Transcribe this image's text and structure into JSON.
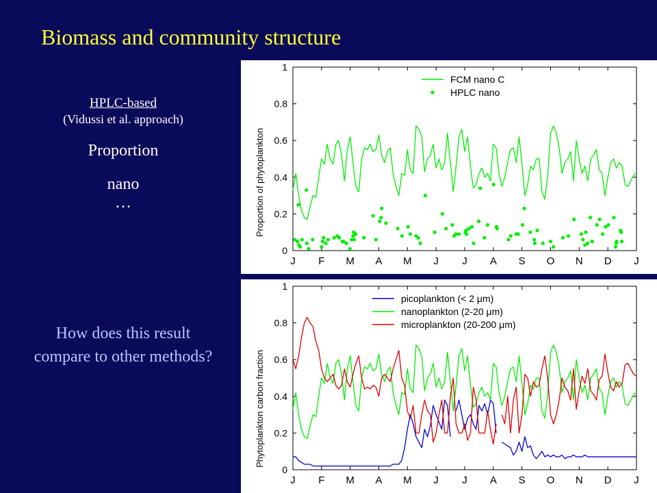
{
  "slide": {
    "title": "Biomass and community structure"
  },
  "left_panel": {
    "method_label": "HPLC-based",
    "reference": "(Vidussi et al. approach)",
    "line1": "Proportion",
    "line2": "nano",
    "ellipsis": "…",
    "question": "How does this result compare to other methods?"
  },
  "colors": {
    "background": "#0a0a5a",
    "title": "#ffff33",
    "question": "#b8c4ff",
    "green": "#00ee00",
    "blue": "#0000cc",
    "red": "#dd0000"
  },
  "chart_data": [
    {
      "type": "line",
      "ylabel": "Proportion of phytoplankton",
      "xlabel": "",
      "ylim": [
        0,
        1
      ],
      "yticks": [
        0,
        0.2,
        0.4,
        0.6,
        0.8,
        1
      ],
      "ytick_labels": [
        "0",
        "0.2",
        "0.4",
        "0.6",
        "0.8",
        "1"
      ],
      "xtick_labels": [
        "J",
        "F",
        "M",
        "A",
        "M",
        "J",
        "J",
        "A",
        "S",
        "O",
        "N",
        "D",
        "J"
      ],
      "legend": "top-center",
      "series": [
        {
          "name": "FCM nano C",
          "style": "line",
          "color": "#00ee00",
          "y": [
            0.33,
            0.42,
            0.3,
            0.22,
            0.18,
            0.17,
            0.24,
            0.3,
            0.29,
            0.4,
            0.5,
            0.47,
            0.58,
            0.5,
            0.47,
            0.58,
            0.6,
            0.52,
            0.38,
            0.55,
            0.62,
            0.48,
            0.35,
            0.32,
            0.5,
            0.56,
            0.55,
            0.58,
            0.54,
            0.55,
            0.63,
            0.52,
            0.48,
            0.54,
            0.56,
            0.42,
            0.35,
            0.3,
            0.42,
            0.41,
            0.55,
            0.44,
            0.42,
            0.68,
            0.66,
            0.62,
            0.43,
            0.5,
            0.52,
            0.58,
            0.45,
            0.5,
            0.44,
            0.48,
            0.64,
            0.48,
            0.32,
            0.46,
            0.62,
            0.66,
            0.54,
            0.62,
            0.46,
            0.34,
            0.36,
            0.42,
            0.45,
            0.4,
            0.42,
            0.38,
            0.58,
            0.56,
            0.42,
            0.35,
            0.4,
            0.48,
            0.55,
            0.56,
            0.48,
            0.62,
            0.47,
            0.3,
            0.36,
            0.46,
            0.44,
            0.5,
            0.5,
            0.32,
            0.28,
            0.41,
            0.64,
            0.68,
            0.64,
            0.56,
            0.42,
            0.48,
            0.5,
            0.54,
            0.38,
            0.6,
            0.5,
            0.42,
            0.46,
            0.38,
            0.5,
            0.52,
            0.55,
            0.44,
            0.42,
            0.3,
            0.4,
            0.48,
            0.5,
            0.45,
            0.48,
            0.46,
            0.36,
            0.35,
            0.38,
            0.41,
            0.42
          ]
        },
        {
          "name": "HPLC nano",
          "style": "markers",
          "color": "#00ee00",
          "x": [
            0.07,
            0.16,
            0.19,
            0.21,
            0.25,
            0.32,
            0.47,
            0.49,
            0.55,
            0.69,
            1.0,
            1.04,
            1.07,
            1.15,
            1.23,
            1.44,
            1.55,
            1.62,
            1.73,
            1.77,
            1.87,
            1.99,
            2.05,
            2.1,
            2.12,
            2.12,
            2.14,
            2.19,
            2.48,
            2.8,
            2.9,
            3.03,
            3.08,
            3.1,
            3.25,
            3.66,
            3.81,
            4.02,
            4.1,
            4.3,
            4.38,
            4.45,
            4.62,
            4.95,
            5.22,
            5.35,
            5.57,
            5.63,
            5.69,
            5.8,
            6.02,
            6.05,
            6.06,
            6.15,
            6.25,
            6.31,
            6.49,
            6.54,
            6.69,
            6.8,
            7.01,
            7.11,
            7.13,
            7.53,
            7.61,
            7.8,
            7.87,
            8.02,
            8.08,
            8.29,
            8.43,
            8.45,
            8.53,
            8.73,
            9.0,
            9.1,
            9.43,
            9.62,
            9.82,
            10.07,
            10.13,
            10.2,
            10.23,
            10.29,
            10.39,
            10.45,
            10.62,
            10.71,
            10.82,
            10.92,
            11.02,
            11.21,
            11.27,
            11.29,
            11.31,
            11.44,
            11.47,
            11.49
          ],
          "y": [
            0.06,
            0.05,
            0.25,
            0.03,
            0.02,
            0.06,
            0.33,
            0.04,
            0.01,
            0.06,
            0.02,
            0.05,
            0.07,
            0.04,
            0.06,
            0.07,
            0.08,
            0.07,
            0.05,
            0.05,
            0.04,
            0.01,
            0.06,
            0.08,
            0.1,
            0.06,
            0.06,
            0.09,
            0.07,
            0.19,
            0.06,
            0.16,
            0.18,
            0.23,
            0.15,
            0.12,
            0.08,
            0.13,
            0.09,
            0.08,
            0.07,
            0.04,
            0.3,
            0.1,
            0.2,
            0.12,
            0.14,
            0.08,
            0.09,
            0.09,
            0.1,
            0.11,
            0.09,
            0.12,
            0.13,
            0.04,
            0.16,
            0.34,
            0.07,
            0.14,
            0.36,
            0.13,
            0.12,
            0.06,
            0.08,
            0.09,
            0.09,
            0.14,
            0.23,
            0.1,
            0.06,
            0.04,
            0.11,
            0.04,
            0.05,
            0.02,
            0.07,
            0.08,
            0.17,
            0.09,
            0.06,
            0.03,
            0.1,
            0.04,
            0.18,
            0.05,
            0.14,
            0.17,
            0.09,
            0.13,
            0.14,
            0.18,
            0.02,
            0.04,
            0.05,
            0.11,
            0.1,
            0.05
          ]
        }
      ],
      "x_range": [
        0,
        12
      ]
    },
    {
      "type": "line",
      "ylabel": "Phytoplankton carbon fraction",
      "xlabel": "",
      "ylim": [
        0,
        1
      ],
      "yticks": [
        0,
        0.2,
        0.4,
        0.6,
        0.8,
        1
      ],
      "ytick_labels": [
        "0",
        "0.2",
        "0.4",
        "0.6",
        "0.8",
        "1"
      ],
      "xtick_labels": [
        "J",
        "F",
        "M",
        "A",
        "M",
        "J",
        "J",
        "A",
        "S",
        "O",
        "N",
        "D",
        "J"
      ],
      "legend": "top-center",
      "series": [
        {
          "name": "picoplankton (< 2 μm)",
          "color": "#0000cc",
          "y": [
            0.07,
            0.07,
            0.05,
            0.04,
            0.03,
            0.03,
            0.03,
            0.02,
            0.02,
            0.02,
            0.02,
            0.02,
            0.02,
            0.02,
            0.02,
            0.02,
            0.02,
            0.02,
            0.02,
            0.02,
            0.02,
            0.02,
            0.02,
            0.02,
            0.02,
            0.02,
            0.02,
            0.02,
            0.02,
            0.02,
            0.02,
            0.02,
            0.02,
            0.02,
            0.02,
            0.03,
            0.03,
            0.03,
            0.05,
            0.12,
            0.22,
            0.3,
            0.25,
            0.18,
            0.15,
            0.12,
            0.22,
            0.18,
            0.24,
            0.35,
            0.3,
            0.26,
            0.22,
            0.38,
            0.35,
            0.18,
            null,
            0.32,
            0.38,
            0.3,
            0.22,
            0.28,
            0.3,
            0.25,
            0.22,
            0.35,
            0.32,
            0.36,
            0.3,
            0.38,
            0.36,
            0.2,
            null,
            0.15,
            0.14,
            0.13,
            0.12,
            0.08,
            0.1,
            0.15,
            0.1,
            0.18,
            0.12,
            0.13,
            0.08,
            0.06,
            0.08,
            0.1,
            0.07,
            0.08,
            0.07,
            0.08,
            0.07,
            0.07,
            0.08,
            0.06,
            0.07,
            0.07,
            0.08,
            0.07,
            0.07,
            0.07,
            0.08,
            0.07,
            0.07,
            0.07,
            0.07,
            0.07,
            0.07,
            0.07,
            0.07,
            0.07,
            0.07,
            0.07,
            0.07,
            0.07,
            0.07,
            0.07,
            0.07,
            0.07,
            0.07
          ]
        },
        {
          "name": "nanoplankton (2-20 μm)",
          "color": "#00ee00",
          "y": [
            0.33,
            0.42,
            0.3,
            0.22,
            0.18,
            0.17,
            0.24,
            0.3,
            0.29,
            0.4,
            0.5,
            0.47,
            0.58,
            0.5,
            0.47,
            0.58,
            0.6,
            0.52,
            0.38,
            0.55,
            0.62,
            0.48,
            0.35,
            0.32,
            0.5,
            0.56,
            0.55,
            0.58,
            0.54,
            0.55,
            0.63,
            0.52,
            0.48,
            0.54,
            0.56,
            0.42,
            0.35,
            0.3,
            0.42,
            0.41,
            0.55,
            0.44,
            0.42,
            0.68,
            0.66,
            0.62,
            0.43,
            0.5,
            0.52,
            0.58,
            0.45,
            0.5,
            0.44,
            0.48,
            0.64,
            0.48,
            0.32,
            0.46,
            0.62,
            0.66,
            0.54,
            0.62,
            0.46,
            0.34,
            0.36,
            0.42,
            0.45,
            0.4,
            0.42,
            0.38,
            0.58,
            0.56,
            0.42,
            0.35,
            0.4,
            0.48,
            0.55,
            0.56,
            0.48,
            0.62,
            0.47,
            0.3,
            0.36,
            0.46,
            0.44,
            0.5,
            0.5,
            0.32,
            0.28,
            0.41,
            0.64,
            0.68,
            0.64,
            0.56,
            0.42,
            0.48,
            0.5,
            0.54,
            0.38,
            0.6,
            0.5,
            0.42,
            0.46,
            0.38,
            0.5,
            0.52,
            0.55,
            0.44,
            0.42,
            0.3,
            0.4,
            0.48,
            0.5,
            0.45,
            0.48,
            0.46,
            0.36,
            0.35,
            0.38,
            0.41,
            0.42
          ]
        },
        {
          "name": "microplankton (20-200 μm)",
          "color": "#dd0000",
          "y": [
            0.6,
            0.55,
            0.62,
            0.72,
            0.8,
            0.83,
            0.8,
            0.78,
            0.7,
            0.65,
            0.55,
            0.5,
            0.48,
            0.5,
            0.52,
            0.46,
            0.44,
            0.46,
            0.55,
            0.48,
            0.45,
            0.52,
            0.58,
            0.62,
            0.5,
            0.44,
            0.45,
            0.44,
            0.46,
            0.45,
            0.4,
            0.5,
            0.52,
            0.5,
            0.48,
            0.55,
            0.6,
            0.65,
            0.5,
            0.46,
            0.32,
            0.28,
            0.35,
            0.2,
            0.2,
            0.3,
            0.38,
            0.32,
            0.3,
            0.15,
            0.2,
            0.3,
            0.38,
            0.2,
            0.2,
            0.4,
            0.5,
            0.25,
            0.2,
            0.2,
            0.25,
            0.16,
            0.2,
            0.45,
            0.38,
            0.2,
            0.2,
            0.2,
            0.32,
            0.22,
            0.14,
            0.25,
            null,
            0.3,
            0.25,
            0.4,
            0.2,
            0.38,
            0.45,
            0.2,
            0.3,
            0.52,
            0.5,
            0.4,
            0.48,
            0.45,
            0.46,
            0.55,
            0.62,
            0.5,
            0.3,
            0.25,
            0.3,
            0.38,
            0.5,
            0.45,
            0.43,
            0.38,
            0.55,
            0.33,
            0.43,
            0.51,
            0.47,
            0.55,
            0.43,
            0.41,
            0.38,
            0.49,
            0.51,
            0.63,
            0.53,
            0.45,
            0.43,
            0.48,
            0.45,
            0.47,
            0.57,
            0.58,
            0.55,
            0.52,
            0.51
          ]
        }
      ],
      "x_range": [
        0,
        12
      ]
    }
  ]
}
